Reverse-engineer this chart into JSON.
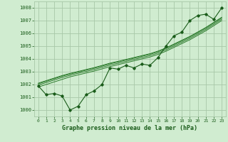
{
  "x": [
    0,
    1,
    2,
    3,
    4,
    5,
    6,
    7,
    8,
    9,
    10,
    11,
    12,
    13,
    14,
    15,
    16,
    17,
    18,
    19,
    20,
    21,
    22,
    23
  ],
  "pressure": [
    1001.9,
    1001.2,
    1001.3,
    1001.1,
    1000.0,
    1000.3,
    1001.2,
    1001.5,
    1002.0,
    1003.3,
    1003.2,
    1003.5,
    1003.3,
    1003.6,
    1003.5,
    1004.1,
    1005.0,
    1005.8,
    1006.1,
    1007.0,
    1007.4,
    1007.5,
    1007.1,
    1008.0
  ],
  "trend1": [
    1001.8,
    1002.0,
    1002.2,
    1002.4,
    1002.6,
    1002.75,
    1002.9,
    1003.05,
    1003.22,
    1003.4,
    1003.55,
    1003.7,
    1003.85,
    1004.0,
    1004.15,
    1004.35,
    1004.6,
    1004.9,
    1005.2,
    1005.5,
    1005.85,
    1006.2,
    1006.6,
    1007.0
  ],
  "trend2": [
    1001.95,
    1002.15,
    1002.35,
    1002.55,
    1002.72,
    1002.88,
    1003.02,
    1003.17,
    1003.34,
    1003.52,
    1003.66,
    1003.81,
    1003.96,
    1004.11,
    1004.26,
    1004.46,
    1004.71,
    1005.01,
    1005.31,
    1005.61,
    1005.96,
    1006.31,
    1006.71,
    1007.11
  ],
  "trend3": [
    1002.05,
    1002.25,
    1002.45,
    1002.65,
    1002.82,
    1002.97,
    1003.12,
    1003.27,
    1003.44,
    1003.62,
    1003.76,
    1003.91,
    1004.06,
    1004.21,
    1004.36,
    1004.56,
    1004.81,
    1005.11,
    1005.41,
    1005.71,
    1006.06,
    1006.41,
    1006.81,
    1007.21
  ],
  "trend4": [
    1002.1,
    1002.3,
    1002.5,
    1002.7,
    1002.87,
    1003.02,
    1003.17,
    1003.32,
    1003.49,
    1003.67,
    1003.81,
    1003.96,
    1004.11,
    1004.26,
    1004.41,
    1004.61,
    1004.86,
    1005.16,
    1005.46,
    1005.76,
    1006.11,
    1006.46,
    1006.86,
    1007.26
  ],
  "bg_color": "#d0ecd0",
  "grid_color": "#a8c8a8",
  "line_color": "#1a5c1a",
  "trend_color": "#2a7a2a",
  "title": "Graphe pression niveau de la mer (hPa)",
  "ylim": [
    999.5,
    1008.5
  ],
  "xlim": [
    -0.5,
    23.5
  ],
  "yticks": [
    1000,
    1001,
    1002,
    1003,
    1004,
    1005,
    1006,
    1007,
    1008
  ],
  "xticks": [
    0,
    1,
    2,
    3,
    4,
    5,
    6,
    7,
    8,
    9,
    10,
    11,
    12,
    13,
    14,
    15,
    16,
    17,
    18,
    19,
    20,
    21,
    22,
    23
  ]
}
